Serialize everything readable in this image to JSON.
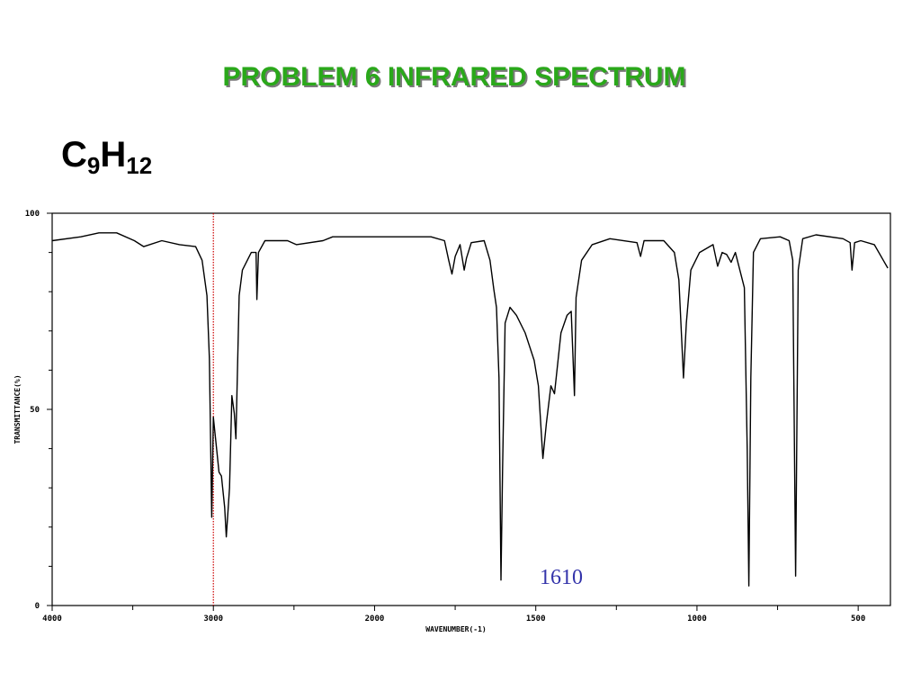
{
  "chart_data": {
    "type": "line",
    "title": "PROBLEM  6   INFRARED SPECTRUM",
    "subtitle": [
      "C",
      "9",
      "H",
      "12"
    ],
    "x_label": "WAVENUMBER(-1)",
    "y_label": "TRANSMITTANCE(%)",
    "color": "#000000",
    "xlim": [
      4000,
      400
    ],
    "x_break": 2000,
    "x_compression_above_break": 2,
    "xticks": [
      4000,
      3000,
      2000,
      1500,
      1000,
      500
    ],
    "xminorticks": [
      3500,
      2500,
      1750,
      1250,
      750
    ],
    "ylim": [
      0,
      100
    ],
    "yticks": [
      0,
      50,
      100
    ],
    "yminorticks": [
      10,
      20,
      30,
      40,
      60,
      70,
      80,
      90
    ],
    "reference_lines": [
      {
        "x": 3000,
        "color": "#cc0000"
      }
    ],
    "annotations": [
      {
        "text": "1610",
        "color": "#3333aa"
      }
    ],
    "x": [
      4000,
      3822,
      3710,
      3600,
      3490,
      3432,
      3320,
      3210,
      3110,
      3070,
      3040,
      3025,
      3010,
      3000,
      2980,
      2965,
      2950,
      2930,
      2920,
      2900,
      2885,
      2870,
      2860,
      2840,
      2820,
      2765,
      2735,
      2730,
      2720,
      2680,
      2540,
      2485,
      2320,
      2260,
      2095,
      2000,
      1935,
      1825,
      1783,
      1770,
      1760,
      1750,
      1735,
      1722,
      1715,
      1700,
      1660,
      1642,
      1630,
      1622,
      1614,
      1608,
      1603,
      1595,
      1580,
      1560,
      1533,
      1505,
      1492,
      1478,
      1467,
      1453,
      1442,
      1422,
      1403,
      1390,
      1380,
      1375,
      1358,
      1325,
      1270,
      1186,
      1175,
      1164,
      1103,
      1070,
      1056,
      1047,
      1042,
      1033,
      1019,
      992,
      950,
      936,
      922,
      908,
      894,
      881,
      867,
      853,
      844,
      839,
      833,
      825,
      803,
      742,
      714,
      703,
      694,
      686,
      672,
      631,
      547,
      525,
      519,
      511,
      492,
      450,
      422,
      408
    ],
    "values": [
      93,
      94,
      95,
      95,
      93,
      91.5,
      93,
      92,
      91.5,
      88,
      79,
      63,
      22.5,
      48,
      40,
      34,
      33,
      25,
      17.5,
      30,
      53.5,
      49,
      42.5,
      79,
      85.5,
      90,
      90,
      78,
      90,
      93,
      93,
      92,
      93,
      94,
      94,
      94,
      94,
      94,
      93,
      88,
      84.5,
      89,
      92,
      85.5,
      88.5,
      92.5,
      93,
      88,
      80.5,
      76,
      58,
      6.5,
      35,
      72,
      76,
      74,
      69.5,
      62.5,
      56,
      37.5,
      46.5,
      56,
      54,
      69.5,
      74,
      75,
      53.5,
      78.5,
      88,
      92,
      93.5,
      92.5,
      89,
      93,
      93,
      90,
      83,
      67,
      58,
      72,
      85.5,
      90,
      92,
      86.5,
      90,
      89.5,
      87.5,
      90,
      85.5,
      81,
      39.5,
      5,
      58,
      90,
      93.5,
      94,
      93,
      88,
      7.5,
      85.5,
      93.5,
      94.5,
      93.5,
      92.5,
      85.5,
      92.5,
      93,
      92,
      88,
      86
    ]
  }
}
